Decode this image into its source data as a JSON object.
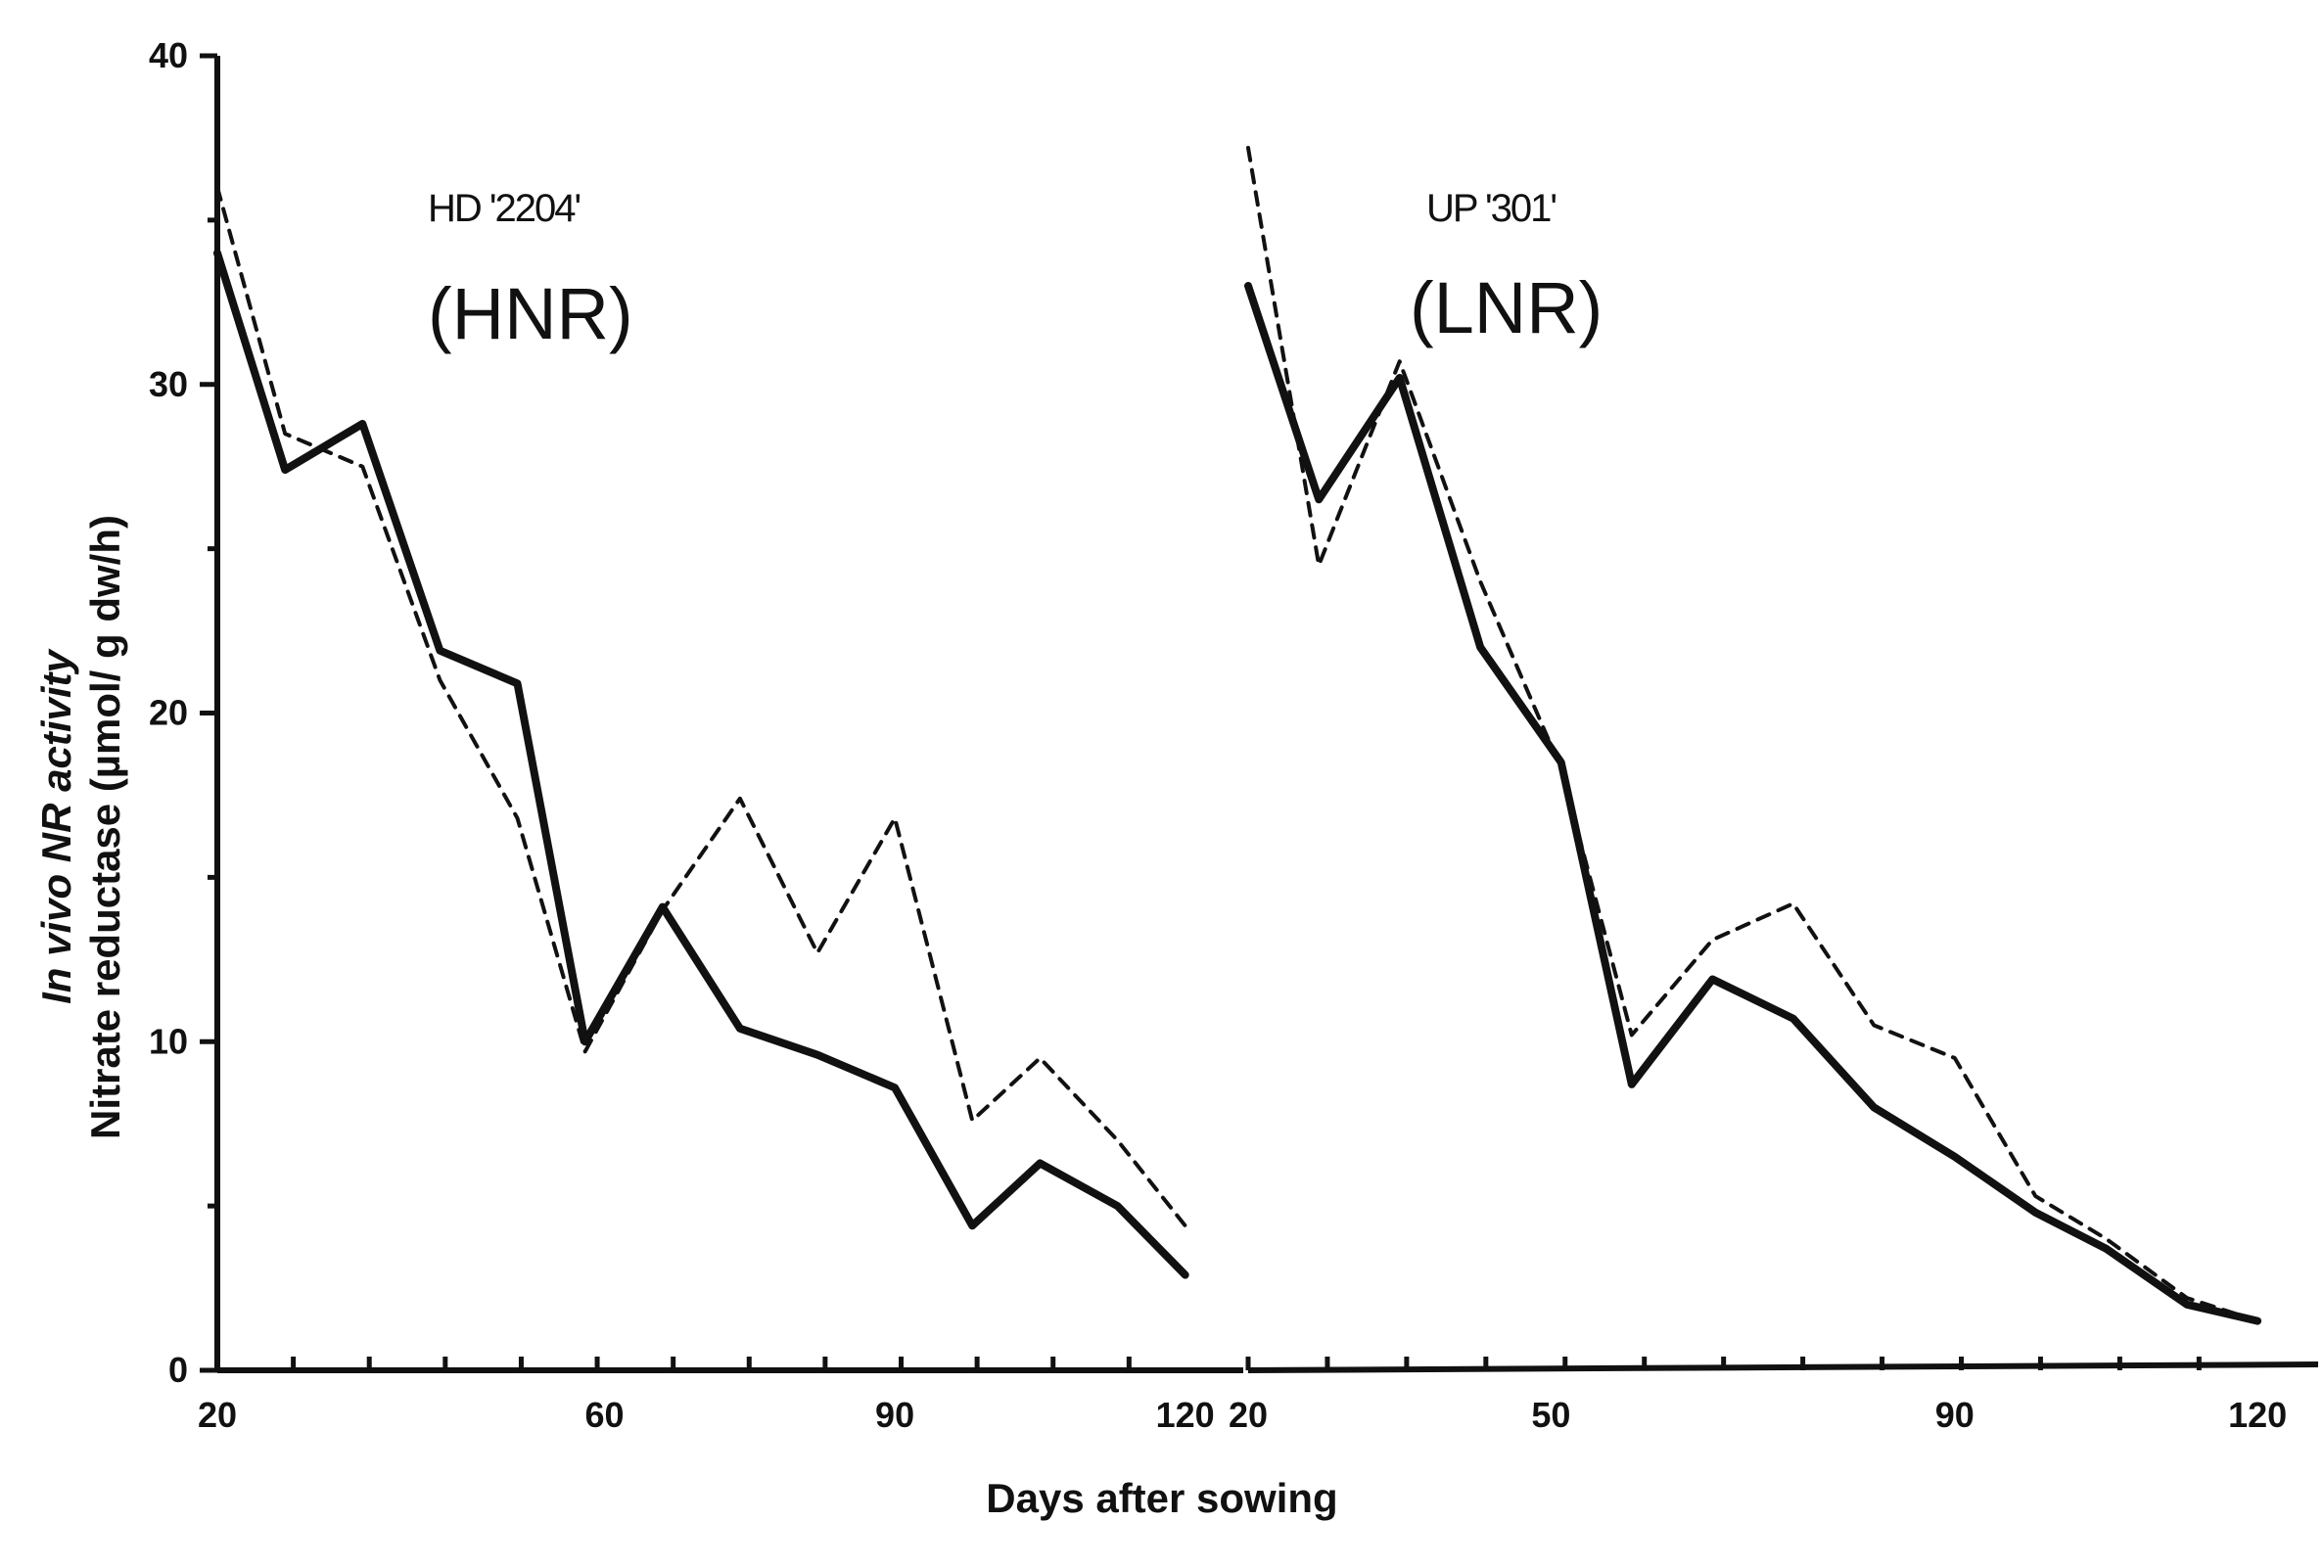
{
  "chart_data": {
    "type": "line",
    "xlabel": "Days  after sowing",
    "ylabel_line1": "In vivo NR activity",
    "ylabel_line2": "Nitrate reductase (µmol/ g dw/h)",
    "ylim": [
      0,
      40
    ],
    "yticks": [
      "0",
      "10",
      "20",
      "30",
      "40"
    ],
    "grid": false,
    "panels": [
      {
        "title": "HD '2204'",
        "subtitle": "(HNR)",
        "xtick_labels": [
          {
            "x": 20,
            "label": "20"
          },
          {
            "x": 60,
            "label": "60"
          },
          {
            "x": 90,
            "label": "90"
          },
          {
            "x": 120,
            "label": "120"
          }
        ],
        "xlim": [
          20,
          126
        ],
        "series": [
          {
            "style": "solid",
            "points": [
              [
                20,
                34
              ],
              [
                27,
                27.4
              ],
              [
                35,
                28.8
              ],
              [
                43,
                21.9
              ],
              [
                51,
                20.9
              ],
              [
                58,
                10
              ],
              [
                66,
                14.1
              ],
              [
                74,
                10.4
              ],
              [
                82,
                9.6
              ],
              [
                90,
                8.6
              ],
              [
                98,
                4.4
              ],
              [
                105,
                6.3
              ],
              [
                113,
                5
              ],
              [
                120,
                2.9
              ]
            ]
          },
          {
            "style": "dashed",
            "points": [
              [
                20,
                36
              ],
              [
                27,
                28.5
              ],
              [
                35,
                27.5
              ],
              [
                43,
                21
              ],
              [
                51,
                16.8
              ],
              [
                58,
                9.7
              ],
              [
                66,
                14
              ],
              [
                74,
                17.4
              ],
              [
                82,
                12.7
              ],
              [
                90,
                16.8
              ],
              [
                98,
                7.6
              ],
              [
                105,
                9.5
              ],
              [
                113,
                7
              ],
              [
                120,
                4.4
              ]
            ]
          }
        ]
      },
      {
        "title": "UP '301'",
        "subtitle": "(LNR)",
        "xtick_labels": [
          {
            "x": 20,
            "label": "20"
          },
          {
            "x": 50,
            "label": "50"
          },
          {
            "x": 90,
            "label": "90"
          },
          {
            "x": 120,
            "label": "120"
          }
        ],
        "xlim": [
          20,
          126
        ],
        "series": [
          {
            "style": "solid",
            "points": [
              [
                20,
                33
              ],
              [
                27,
                26.5
              ],
              [
                35,
                30.2
              ],
              [
                43,
                22
              ],
              [
                51,
                18.5
              ],
              [
                58,
                8.7
              ],
              [
                66,
                11.9
              ],
              [
                74,
                10.7
              ],
              [
                82,
                8
              ],
              [
                90,
                6.5
              ],
              [
                98,
                4.8
              ],
              [
                105,
                3.7
              ],
              [
                113,
                2
              ],
              [
                120,
                1.5
              ]
            ]
          },
          {
            "style": "dashed",
            "points": [
              [
                20,
                37.2
              ],
              [
                27,
                24.5
              ],
              [
                35,
                30.7
              ],
              [
                43,
                24
              ],
              [
                51,
                18.3
              ],
              [
                58,
                10.2
              ],
              [
                66,
                13.1
              ],
              [
                74,
                14.2
              ],
              [
                82,
                10.5
              ],
              [
                90,
                9.5
              ],
              [
                98,
                5.3
              ],
              [
                105,
                4
              ],
              [
                113,
                2.2
              ],
              [
                120,
                1.5
              ]
            ]
          }
        ]
      }
    ]
  }
}
